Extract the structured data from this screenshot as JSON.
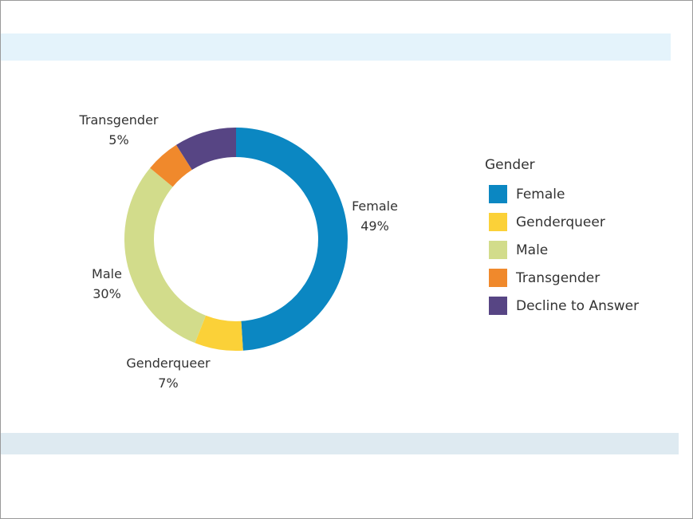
{
  "chart_data": {
    "type": "pie",
    "donut": true,
    "legend_position": "right",
    "legend_title": "Gender",
    "slices": [
      {
        "name": "Female",
        "value": 49,
        "label": "49%",
        "color": "#0b87c2"
      },
      {
        "name": "Genderqueer",
        "value": 7,
        "label": "7%",
        "color": "#fbd138"
      },
      {
        "name": "Male",
        "value": 30,
        "label": "30%",
        "color": "#d2dc8b"
      },
      {
        "name": "Transgender",
        "value": 5,
        "label": "5%",
        "color": "#f0892c"
      },
      {
        "name": "Decline to Answer",
        "value": 9,
        "label": "",
        "color": "#574584"
      }
    ]
  }
}
